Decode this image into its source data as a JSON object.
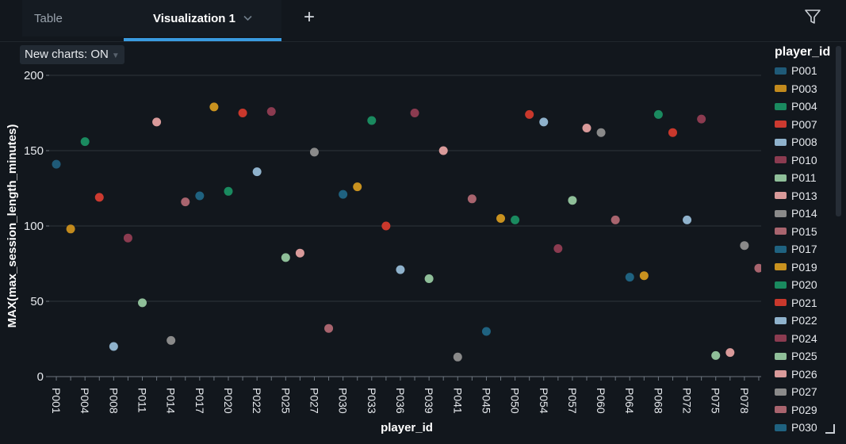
{
  "tabs": {
    "table_label": "Table",
    "vis_label": "Visualization 1",
    "add_label": "+"
  },
  "toolbar": {
    "new_charts_label": "New charts: ON"
  },
  "legend": {
    "title": "player_id",
    "items": [
      {
        "label": "P001",
        "color": "#1f5a78"
      },
      {
        "label": "P003",
        "color": "#c28a1d"
      },
      {
        "label": "P004",
        "color": "#1a8a5f"
      },
      {
        "label": "P007",
        "color": "#cc3a30"
      },
      {
        "label": "P008",
        "color": "#8fb2cc"
      },
      {
        "label": "P010",
        "color": "#8b3b50"
      },
      {
        "label": "P011",
        "color": "#8fbf99"
      },
      {
        "label": "P013",
        "color": "#d99a9a"
      },
      {
        "label": "P014",
        "color": "#8a8a8a"
      },
      {
        "label": "P015",
        "color": "#a8646e"
      },
      {
        "label": "P017",
        "color": "#1f6280"
      },
      {
        "label": "P019",
        "color": "#c9921f"
      },
      {
        "label": "P020",
        "color": "#1a8a5f"
      },
      {
        "label": "P021",
        "color": "#c9382c"
      },
      {
        "label": "P022",
        "color": "#8fb2cc"
      },
      {
        "label": "P024",
        "color": "#8b3b50"
      },
      {
        "label": "P025",
        "color": "#8fbf99"
      },
      {
        "label": "P026",
        "color": "#d99a9a"
      },
      {
        "label": "P027",
        "color": "#8a8a8a"
      },
      {
        "label": "P029",
        "color": "#a8646e"
      },
      {
        "label": "P030",
        "color": "#1f6280"
      }
    ]
  },
  "chart_data": {
    "type": "scatter",
    "xlabel": "player_id",
    "ylabel": "MAX(max_session_length_minutes)",
    "ylim": [
      0,
      200
    ],
    "yticks": [
      0,
      50,
      100,
      150,
      200
    ],
    "xtick_labels": [
      "P001",
      "P004",
      "P008",
      "P011",
      "P014",
      "P017",
      "P020",
      "P022",
      "P025",
      "P027",
      "P030",
      "P033",
      "P036",
      "P039",
      "P041",
      "P045",
      "P050",
      "P054",
      "P057",
      "P060",
      "P064",
      "P068",
      "P072",
      "P075",
      "P078"
    ],
    "grid": true,
    "legend_position": "right",
    "points": [
      {
        "x": "P001",
        "y": 141,
        "color": "#1f5a78"
      },
      {
        "x": "P003",
        "y": 98,
        "color": "#c28a1d"
      },
      {
        "x": "P004",
        "y": 156,
        "color": "#1a8a5f"
      },
      {
        "x": "P007",
        "y": 119,
        "color": "#cc3a30"
      },
      {
        "x": "P008",
        "y": 20,
        "color": "#8fb2cc"
      },
      {
        "x": "P010",
        "y": 92,
        "color": "#8b3b50"
      },
      {
        "x": "P011",
        "y": 49,
        "color": "#8fbf99"
      },
      {
        "x": "P013",
        "y": 169,
        "color": "#d99a9a"
      },
      {
        "x": "P014",
        "y": 24,
        "color": "#8a8a8a"
      },
      {
        "x": "P015",
        "y": 116,
        "color": "#a8646e"
      },
      {
        "x": "P017",
        "y": 120,
        "color": "#1f6280"
      },
      {
        "x": "P019",
        "y": 179,
        "color": "#c9921f"
      },
      {
        "x": "P020",
        "y": 123,
        "color": "#1a8a5f"
      },
      {
        "x": "P021",
        "y": 175,
        "color": "#c9382c"
      },
      {
        "x": "P022",
        "y": 136,
        "color": "#8fb2cc"
      },
      {
        "x": "P024",
        "y": 176,
        "color": "#8b3b50"
      },
      {
        "x": "P025",
        "y": 79,
        "color": "#8fbf99"
      },
      {
        "x": "P026",
        "y": 82,
        "color": "#d99a9a"
      },
      {
        "x": "P027",
        "y": 149,
        "color": "#8a8a8a"
      },
      {
        "x": "P029",
        "y": 32,
        "color": "#a8646e"
      },
      {
        "x": "P030",
        "y": 121,
        "color": "#1f6280"
      },
      {
        "x": "P031",
        "y": 126,
        "color": "#c9921f"
      },
      {
        "x": "P033",
        "y": 170,
        "color": "#1a8a5f"
      },
      {
        "x": "P034",
        "y": 100,
        "color": "#c9382c"
      },
      {
        "x": "P036",
        "y": 71,
        "color": "#8fb2cc"
      },
      {
        "x": "P037",
        "y": 175,
        "color": "#8b3b50"
      },
      {
        "x": "P039",
        "y": 65,
        "color": "#8fbf99"
      },
      {
        "x": "P040",
        "y": 150,
        "color": "#d99a9a"
      },
      {
        "x": "P041",
        "y": 13,
        "color": "#8a8a8a"
      },
      {
        "x": "P043",
        "y": 118,
        "color": "#a8646e"
      },
      {
        "x": "P045",
        "y": 30,
        "color": "#1f6280"
      },
      {
        "x": "P047",
        "y": 105,
        "color": "#c9921f"
      },
      {
        "x": "P050",
        "y": 104,
        "color": "#1a8a5f"
      },
      {
        "x": "P052",
        "y": 174,
        "color": "#c9382c"
      },
      {
        "x": "P054",
        "y": 169,
        "color": "#8fb2cc"
      },
      {
        "x": "P055",
        "y": 85,
        "color": "#8b3b50"
      },
      {
        "x": "P057",
        "y": 117,
        "color": "#8fbf99"
      },
      {
        "x": "P058",
        "y": 165,
        "color": "#d99a9a"
      },
      {
        "x": "P060",
        "y": 162,
        "color": "#8a8a8a"
      },
      {
        "x": "P062",
        "y": 104,
        "color": "#a8646e"
      },
      {
        "x": "P064",
        "y": 66,
        "color": "#1f6280"
      },
      {
        "x": "P066",
        "y": 67,
        "color": "#c9921f"
      },
      {
        "x": "P068",
        "y": 174,
        "color": "#1a8a5f"
      },
      {
        "x": "P070",
        "y": 162,
        "color": "#c9382c"
      },
      {
        "x": "P072",
        "y": 104,
        "color": "#8fb2cc"
      },
      {
        "x": "P073",
        "y": 171,
        "color": "#8b3b50"
      },
      {
        "x": "P075",
        "y": 14,
        "color": "#8fbf99"
      },
      {
        "x": "P076",
        "y": 16,
        "color": "#d99a9a"
      },
      {
        "x": "P078",
        "y": 87,
        "color": "#8a8a8a"
      },
      {
        "x": "P079",
        "y": 72,
        "color": "#a8646e"
      }
    ]
  }
}
